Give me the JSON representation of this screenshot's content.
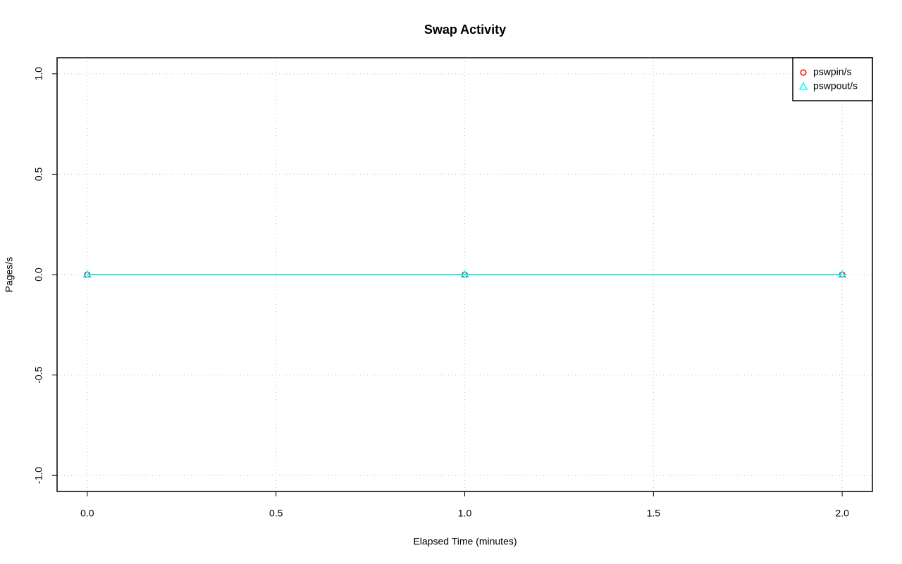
{
  "chart_data": {
    "type": "line",
    "title": "Swap Activity",
    "x_label": "Elapsed Time (minutes)",
    "y_label": "Pages/s",
    "x": [
      0,
      1,
      2
    ],
    "series": [
      {
        "name": "pswpin/s",
        "color": "#ff0000",
        "marker": "circle",
        "values": [
          0,
          0,
          0
        ]
      },
      {
        "name": "pswpout/s",
        "color": "#00ffff",
        "marker": "triangle",
        "values": [
          0,
          0,
          0
        ]
      }
    ],
    "xlim": [
      -0.08,
      2.08
    ],
    "ylim": [
      -1.08,
      1.08
    ],
    "xticks": [
      {
        "value": 0,
        "label": "0.0"
      },
      0.5,
      {
        "value": 1,
        "label": "1.0"
      },
      1.5,
      {
        "value": 2,
        "label": "2.0"
      }
    ],
    "yticks": [
      {
        "value": -1,
        "label": "-1.0"
      },
      -0.5,
      {
        "value": 0,
        "label": "0.0"
      },
      0.5,
      {
        "value": 1,
        "label": "1.0"
      }
    ],
    "grid": true,
    "legend": "topright"
  }
}
